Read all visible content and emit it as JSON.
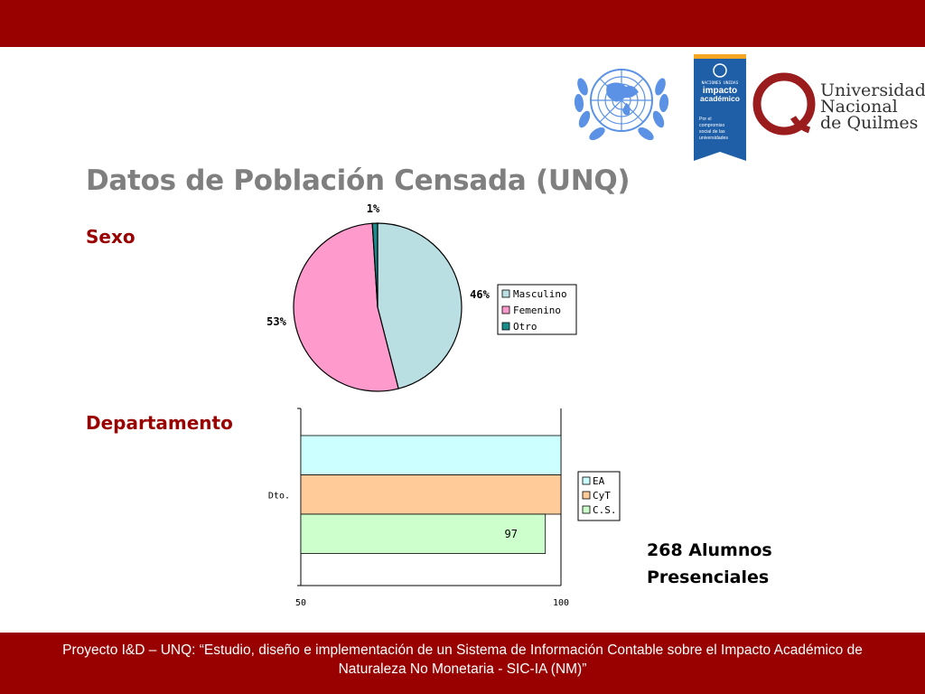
{
  "slide": {
    "title": "Datos de Población Censada (UNQ)",
    "section_sexo": "Sexo",
    "section_departamento": "Departamento",
    "note_line1": "268 Alumnos",
    "note_line2": "Presenciales",
    "footer_line1": "Proyecto I&D – UNQ: “Estudio, diseño e implementación de un Sistema de Información Contable sobre el Impacto Académico de",
    "footer_line2": "Naturaleza No Monetaria - SIC-IA (NM)”",
    "colors": {
      "brand": "#990000",
      "title": "#7f7f7f",
      "section": "#9b0000"
    }
  },
  "logos": {
    "impacto": {
      "top": "NACIONES UNIDAS",
      "l1": "impacto",
      "l2": "académico",
      "d1": "Por el",
      "d2": "compromiso",
      "d3": "social de las",
      "d4": "universidades"
    },
    "unq": {
      "l1": "Universidad",
      "l2": "Nacional",
      "l3": "de Quilmes"
    },
    "un_emblem": "un-emblem"
  },
  "chart_data": [
    {
      "type": "pie",
      "labels": [
        "Masculino",
        "Femenino",
        "Otro"
      ],
      "values": [
        46,
        53,
        1
      ],
      "value_labels": [
        "46%",
        "53%",
        "1%"
      ],
      "colors": [
        "#b9dfe2",
        "#ff9acd",
        "#1b8c8c"
      ],
      "legend_position": "right"
    },
    {
      "type": "bar",
      "orientation": "horizontal",
      "categories": [
        "Dto."
      ],
      "series": [
        {
          "name": "EA",
          "values": [
            100
          ],
          "color": "#ccffff"
        },
        {
          "name": "CyT",
          "values": [
            100
          ],
          "color": "#ffcc99"
        },
        {
          "name": "C.S.",
          "values": [
            97
          ],
          "color": "#ccffcc"
        }
      ],
      "data_labels": [
        "",
        "",
        "97"
      ],
      "xlim": [
        50,
        100
      ],
      "xticks": [
        "50",
        "100"
      ],
      "legend_position": "right"
    }
  ]
}
